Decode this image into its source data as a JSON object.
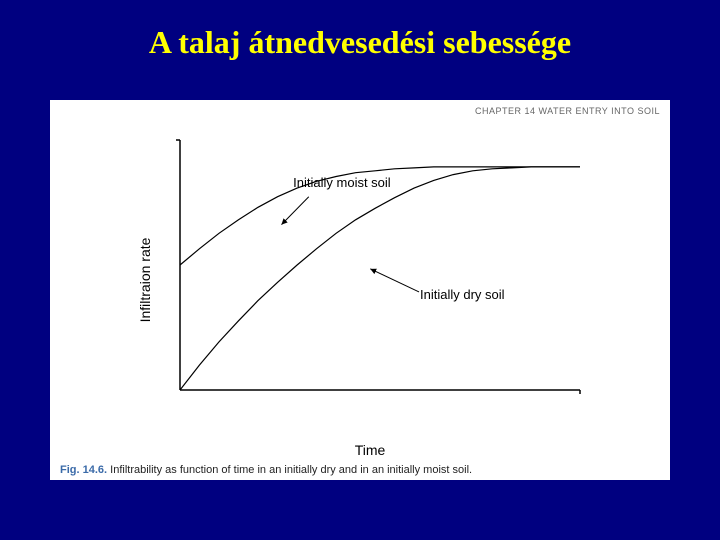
{
  "title": "A talaj átnedvesedési sebessége",
  "header_fragment": "CHAPTER 14   WATER ENTRY INTO SOIL",
  "chart": {
    "type": "line",
    "y_axis_label": "Infiltraion rate",
    "x_axis_label": "Time",
    "xlim": [
      0,
      410
    ],
    "ylim": [
      0,
      260
    ],
    "axis_stroke": "#000000",
    "axis_stroke_width": 1.5,
    "line_stroke": "#000000",
    "line_stroke_width": 1.2,
    "background_color": "#ffffff",
    "series": {
      "dry": {
        "label": "Initially dry soil",
        "label_pos": {
          "x": 246,
          "y": 99
        },
        "arrow": {
          "x1": 245,
          "y1": 102,
          "x2": 195,
          "y2": 126
        },
        "points": [
          [
            0,
            0
          ],
          [
            20,
            26
          ],
          [
            40,
            50
          ],
          [
            60,
            72
          ],
          [
            80,
            93
          ],
          [
            100,
            112
          ],
          [
            120,
            130
          ],
          [
            140,
            147
          ],
          [
            160,
            163
          ],
          [
            180,
            177
          ],
          [
            200,
            189
          ],
          [
            220,
            200
          ],
          [
            240,
            210
          ],
          [
            260,
            218
          ],
          [
            280,
            224
          ],
          [
            300,
            228
          ],
          [
            320,
            230
          ],
          [
            340,
            231
          ],
          [
            360,
            232
          ],
          [
            380,
            232
          ],
          [
            410,
            232
          ]
        ]
      },
      "moist": {
        "label": "Initially moist soil",
        "label_pos": {
          "x": 116,
          "y": 215
        },
        "arrow": {
          "x1": 132,
          "y1": 201,
          "x2": 104,
          "y2": 172
        },
        "points": [
          [
            0,
            130
          ],
          [
            20,
            147
          ],
          [
            40,
            163
          ],
          [
            60,
            177
          ],
          [
            80,
            190
          ],
          [
            100,
            201
          ],
          [
            120,
            210
          ],
          [
            140,
            217
          ],
          [
            160,
            222
          ],
          [
            180,
            226
          ],
          [
            200,
            228
          ],
          [
            220,
            230
          ],
          [
            240,
            231
          ],
          [
            260,
            232
          ],
          [
            280,
            232
          ],
          [
            300,
            232
          ],
          [
            320,
            232
          ],
          [
            340,
            232
          ],
          [
            360,
            232
          ],
          [
            380,
            232
          ],
          [
            410,
            232
          ]
        ]
      }
    }
  },
  "caption": {
    "fig_num": "Fig. 14.6.",
    "text": "Infiltrability as function of time in an initially dry and in an initially moist soil."
  },
  "colors": {
    "slide_bg": "#000080",
    "title_color": "#ffff00",
    "figure_bg": "#ffffff",
    "fig_num_color": "#3a6aa8"
  },
  "typography": {
    "title_fontsize": 32,
    "axis_label_fontsize": 14,
    "curve_label_fontsize": 13,
    "caption_fontsize": 11
  }
}
